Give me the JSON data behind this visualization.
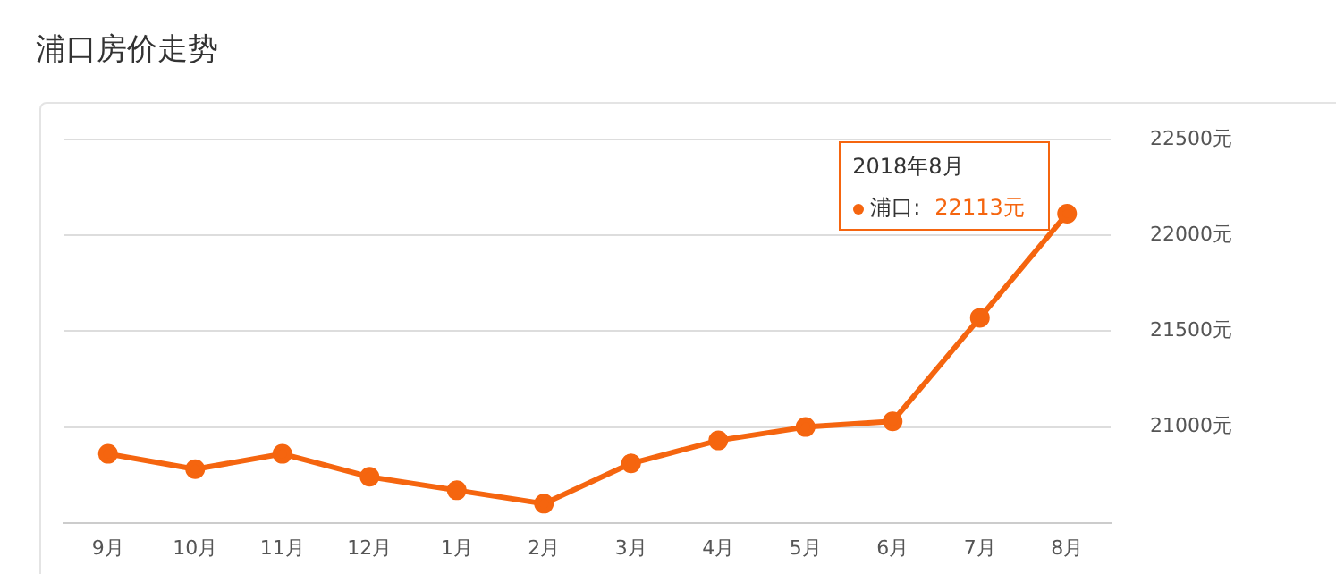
{
  "chart_data": {
    "type": "line",
    "title": "浦口房价走势",
    "categories": [
      "9月",
      "10月",
      "11月",
      "12月",
      "1月",
      "2月",
      "3月",
      "4月",
      "5月",
      "6月",
      "7月",
      "8月"
    ],
    "series": [
      {
        "name": "浦口:",
        "color": "#f5650f",
        "values": [
          20860,
          20780,
          20860,
          20740,
          20670,
          20600,
          20810,
          20930,
          21000,
          21030,
          21570,
          22113
        ],
        "value_labels": [
          null,
          null,
          null,
          null,
          null,
          null,
          null,
          null,
          null,
          null,
          null,
          "22113元"
        ]
      }
    ],
    "annotations": [
      "2018年8月"
    ],
    "ylim": [
      20500,
      22500
    ],
    "yticks": [
      {
        "value": 21000,
        "label": "21000元"
      },
      {
        "value": 21500,
        "label": "21500元"
      },
      {
        "value": 22000,
        "label": "22000元"
      },
      {
        "value": 22500,
        "label": "22500元"
      }
    ],
    "grid": "y",
    "marker": "circle",
    "line_style": "solid",
    "legend": "top right"
  }
}
